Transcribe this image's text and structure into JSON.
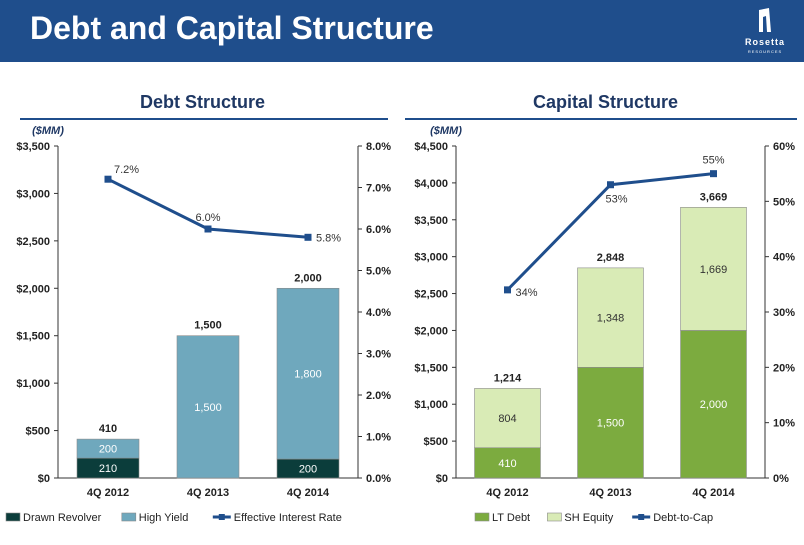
{
  "header": {
    "title": "Debt and Capital Structure",
    "logo_name": "Rosetta",
    "logo_sub": "RESOURCES",
    "background_color": "#1f4e8c"
  },
  "chart_data": [
    {
      "type": "bar",
      "stacked": true,
      "title": "Debt Structure",
      "unit_label": "($MM)",
      "categories": [
        "4Q 2012",
        "4Q 2013",
        "4Q 2014"
      ],
      "series": [
        {
          "name": "Drawn Revolver",
          "values": [
            210,
            0,
            200
          ],
          "labels": [
            "210",
            "",
            "200"
          ],
          "color": "#0b3d3b"
        },
        {
          "name": "High Yield",
          "values": [
            200,
            1500,
            1800
          ],
          "labels": [
            "200",
            "1,500",
            "1,800"
          ],
          "color": "#6fa8bd"
        }
      ],
      "totals": [
        "410",
        "1,500",
        "2,000"
      ],
      "ylim": [
        0,
        3500
      ],
      "yticks": [
        "$0",
        "$500",
        "$1,000",
        "$1,500",
        "$2,000",
        "$2,500",
        "$3,000",
        "$3,500"
      ],
      "line": {
        "name": "Effective Interest Rate",
        "values": [
          7.2,
          6.0,
          5.8
        ],
        "labels": [
          "7.2%",
          "6.0%",
          "5.8%"
        ],
        "color": "#1f4e8c"
      },
      "y2lim": [
        0,
        8
      ],
      "y2ticks": [
        "0.0%",
        "1.0%",
        "2.0%",
        "3.0%",
        "4.0%",
        "5.0%",
        "6.0%",
        "7.0%",
        "8.0%"
      ],
      "legend_position": "bottom"
    },
    {
      "type": "bar",
      "stacked": true,
      "title": "Capital Structure",
      "unit_label": "($MM)",
      "categories": [
        "4Q 2012",
        "4Q 2013",
        "4Q 2014"
      ],
      "series": [
        {
          "name": "LT Debt",
          "values": [
            410,
            1500,
            2000
          ],
          "labels": [
            "410",
            "1,500",
            "2,000"
          ],
          "color": "#7cab3f"
        },
        {
          "name": "SH Equity",
          "values": [
            804,
            1348,
            1669
          ],
          "labels": [
            "804",
            "1,348",
            "1,669"
          ],
          "color": "#d9ebb6"
        }
      ],
      "totals": [
        "1,214",
        "2,848",
        "3,669"
      ],
      "ylim": [
        0,
        4500
      ],
      "yticks": [
        "$0",
        "$500",
        "$1,000",
        "$1,500",
        "$2,000",
        "$2,500",
        "$3,000",
        "$3,500",
        "$4,000",
        "$4,500"
      ],
      "line": {
        "name": "Debt-to-Cap",
        "values": [
          34,
          53,
          55
        ],
        "labels": [
          "34%",
          "53%",
          "55%"
        ],
        "color": "#1f4e8c"
      },
      "y2lim": [
        0,
        60
      ],
      "y2ticks": [
        "0%",
        "10%",
        "20%",
        "30%",
        "40%",
        "50%",
        "60%"
      ],
      "legend_position": "bottom"
    }
  ]
}
